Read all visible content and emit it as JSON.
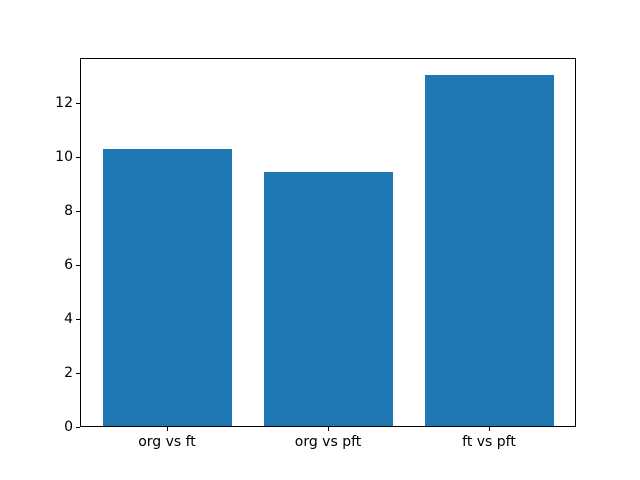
{
  "chart_data": {
    "type": "bar",
    "categories": [
      "org vs ft",
      "org vs pft",
      "ft vs pft"
    ],
    "values": [
      10.25,
      9.38,
      13.0
    ],
    "y_ticks": [
      0,
      2,
      4,
      6,
      8,
      10,
      12
    ],
    "ylim": [
      0,
      13.65
    ],
    "xlim": [
      -0.54,
      2.54
    ],
    "bar_width": 0.8,
    "grid": false,
    "legend": "none",
    "colors": {
      "bar": "#1f77b4",
      "axis": "#000000",
      "background": "#ffffff",
      "text": "#000000"
    }
  }
}
